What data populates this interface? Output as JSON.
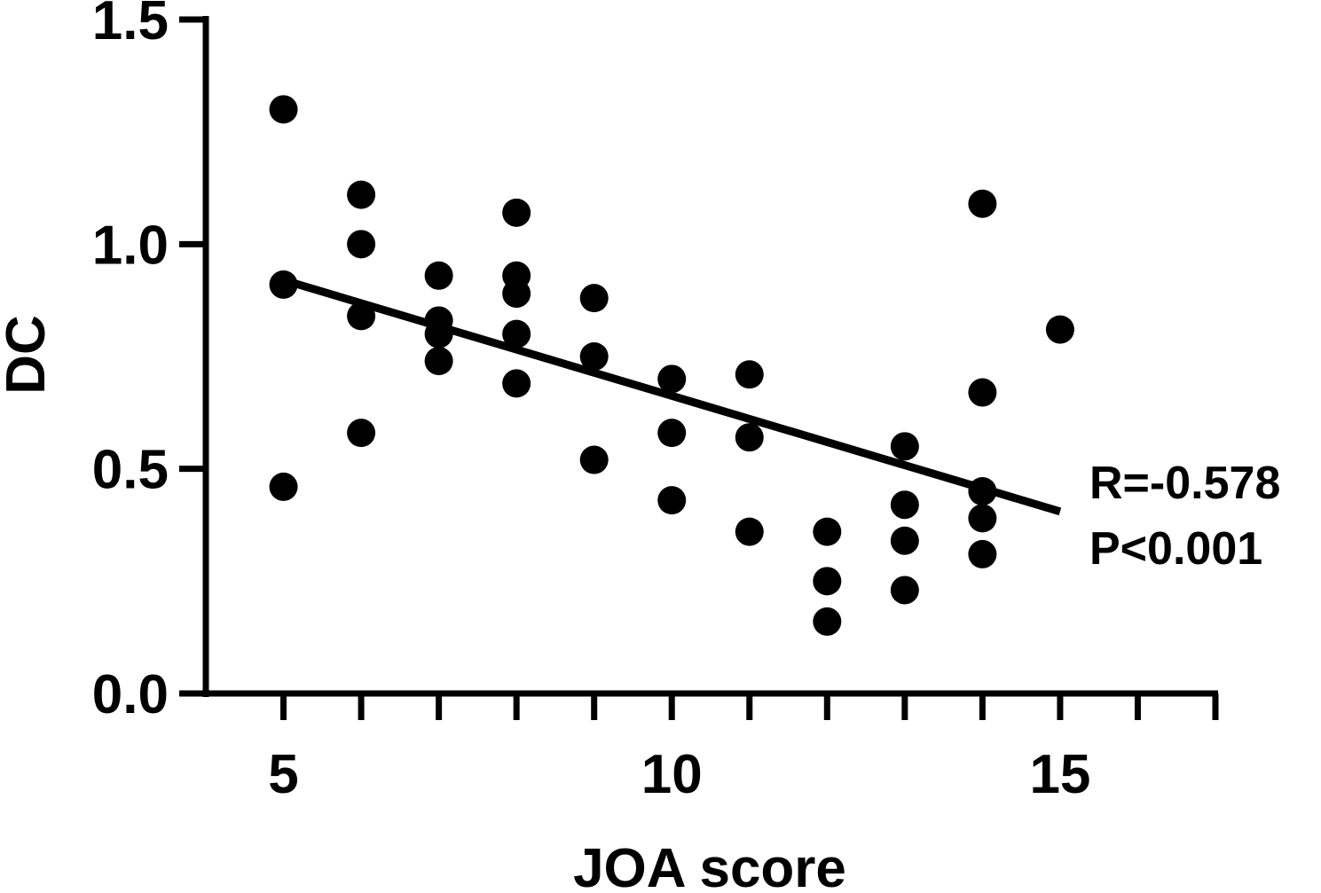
{
  "chart_data": {
    "type": "scatter",
    "title": "",
    "xlabel": "JOA score",
    "ylabel": "DC",
    "xlim": [
      4,
      17
    ],
    "ylim": [
      0,
      1.5
    ],
    "xticks": [
      5,
      10,
      15
    ],
    "xticks_minor": [
      4,
      5,
      6,
      7,
      8,
      9,
      10,
      11,
      12,
      13,
      14,
      15,
      16,
      17
    ],
    "yticks": [
      "0.0",
      "0.5",
      "1.0",
      "1.5"
    ],
    "ytick_values": [
      0,
      0.5,
      1.0,
      1.5
    ],
    "grid": false,
    "points": [
      [
        5,
        1.3
      ],
      [
        5,
        0.91
      ],
      [
        5,
        0.46
      ],
      [
        6,
        1.11
      ],
      [
        6,
        1.0
      ],
      [
        6,
        0.84
      ],
      [
        6,
        0.58
      ],
      [
        7,
        0.93
      ],
      [
        7,
        0.83
      ],
      [
        7,
        0.8
      ],
      [
        7,
        0.74
      ],
      [
        8,
        1.07
      ],
      [
        8,
        0.93
      ],
      [
        8,
        0.89
      ],
      [
        8,
        0.8
      ],
      [
        8,
        0.69
      ],
      [
        9,
        0.88
      ],
      [
        9,
        0.75
      ],
      [
        9,
        0.52
      ],
      [
        10,
        0.7
      ],
      [
        10,
        0.58
      ],
      [
        10,
        0.43
      ],
      [
        11,
        0.71
      ],
      [
        11,
        0.57
      ],
      [
        11,
        0.36
      ],
      [
        12,
        0.36
      ],
      [
        12,
        0.25
      ],
      [
        12,
        0.16
      ],
      [
        13,
        0.55
      ],
      [
        13,
        0.42
      ],
      [
        13,
        0.34
      ],
      [
        13,
        0.23
      ],
      [
        14,
        1.09
      ],
      [
        14,
        0.67
      ],
      [
        14,
        0.45
      ],
      [
        14,
        0.39
      ],
      [
        14,
        0.31
      ],
      [
        15,
        0.81
      ]
    ],
    "regression_line": {
      "x": [
        5,
        15
      ],
      "y": [
        0.92,
        0.405
      ]
    },
    "annotations": [
      "R=-0.578",
      "P<0.001"
    ]
  }
}
